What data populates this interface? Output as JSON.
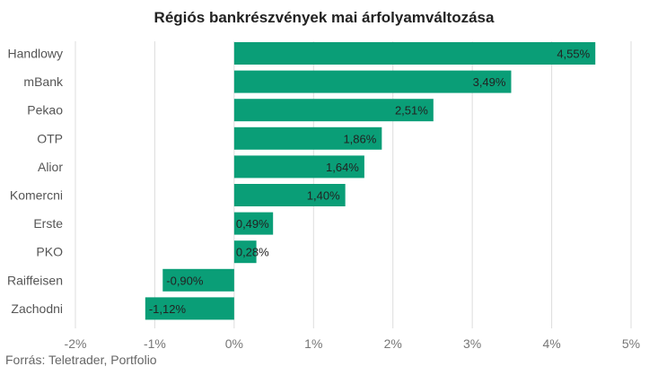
{
  "chart_data": {
    "type": "bar",
    "orientation": "horizontal",
    "title": "Régiós bankrészvények mai árfolyamváltozása",
    "categories": [
      "Handlowy",
      "mBank",
      "Pekao",
      "OTP",
      "Alior",
      "Komercni",
      "Erste",
      "PKO",
      "Raiffeisen",
      "Zachodni"
    ],
    "values": [
      4.55,
      3.49,
      2.51,
      1.86,
      1.64,
      1.4,
      0.49,
      0.28,
      -0.9,
      -1.12
    ],
    "data_labels": [
      "4,55%",
      "3,49%",
      "2,51%",
      "1,86%",
      "1,64%",
      "1,40%",
      "0,49%",
      "0,28%",
      "-0,90%",
      "-1,12%"
    ],
    "xlim": [
      -2,
      5
    ],
    "x_ticks": [
      -2,
      -1,
      0,
      1,
      2,
      3,
      4,
      5
    ],
    "x_tick_labels": [
      "-2%",
      "-1%",
      "0%",
      "1%",
      "2%",
      "3%",
      "4%",
      "5%"
    ],
    "grid": "vertical",
    "bar_color": "#0a9e77",
    "source": "Forrás: Teletrader, Portfolio"
  }
}
